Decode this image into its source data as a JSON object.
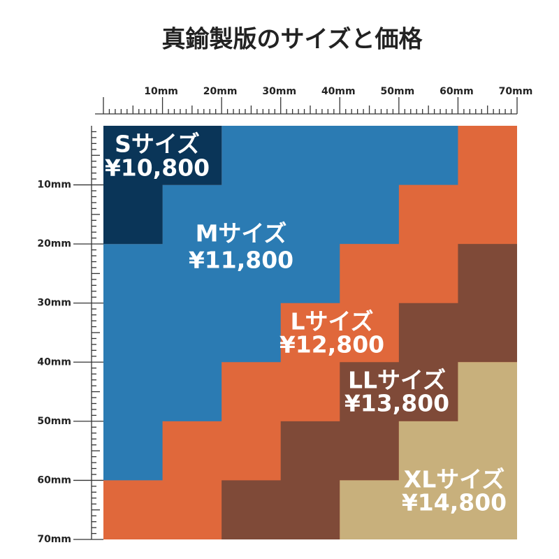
{
  "header": {
    "title": "真鍮製版のサイズと価格"
  },
  "ruler": {
    "x_labels": [
      "10mm",
      "20mm",
      "30mm",
      "40mm",
      "50mm",
      "60mm",
      "70mm"
    ],
    "y_labels": [
      "10mm",
      "20mm",
      "30mm",
      "40mm",
      "50mm",
      "60mm",
      "70mm"
    ]
  },
  "sizes": [
    {
      "name": "Sサイズ",
      "price": "¥10,800"
    },
    {
      "name": "Mサイズ",
      "price": "¥11,800"
    },
    {
      "name": "Lサイズ",
      "price": "¥12,800"
    },
    {
      "name": "LLサイズ",
      "price": "¥13,800"
    },
    {
      "name": "XLサイズ",
      "price": "¥14,800"
    }
  ]
}
